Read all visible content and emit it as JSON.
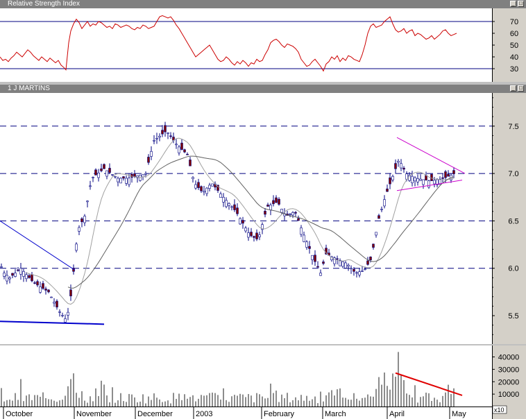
{
  "rsi_panel": {
    "title": "Relative Strength Index",
    "yticks": [
      30,
      40,
      50,
      60,
      70
    ],
    "ylim": [
      20,
      80
    ],
    "reference_lines": [
      30,
      70
    ]
  },
  "price_panel": {
    "title": "1 J MARTINS",
    "yticks": [
      "5.5",
      "6.0",
      "6.5",
      "7.0",
      "7.5"
    ],
    "ylim": [
      5.2,
      7.85
    ],
    "dashed_levels": [
      7.5,
      7.0,
      6.5,
      6.0
    ]
  },
  "volume_panel": {
    "yticks": [
      "10000",
      "20000",
      "30000",
      "40000"
    ],
    "ylim": [
      0,
      47000
    ],
    "scale_label": "x10"
  },
  "x_axis": {
    "months": [
      "October",
      "November",
      "December",
      "2003",
      "February",
      "March",
      "April",
      "May"
    ]
  },
  "colors": {
    "rsi_line": "#cc0000",
    "up_candle": "#ffffff",
    "down_candle": "#800000",
    "ma_fast": "#a0a0a0",
    "ma_slow": "#606060",
    "trendline": "#0000cc",
    "triangle": "#cc00cc",
    "volume_trend": "#e00000"
  },
  "chart_data": [
    {
      "type": "line",
      "title": "Relative Strength Index",
      "x": [
        0,
        4,
        8,
        12,
        16,
        20,
        24,
        28,
        32,
        36,
        40,
        44,
        48,
        52,
        56,
        60,
        64,
        68,
        72,
        76,
        80,
        84,
        88,
        92,
        95,
        99,
        102,
        106,
        110,
        114,
        118,
        122,
        126,
        130,
        134,
        138,
        142,
        146,
        150,
        154,
        158,
        162,
        166,
        170,
        174,
        178,
        182,
        186,
        190,
        194,
        198,
        202,
        206,
        210,
        214,
        218,
        222,
        226,
        230,
        234,
        238,
        242,
        246,
        250,
        254,
        258,
        262,
        266,
        270,
        274,
        278,
        282,
        286,
        290,
        294,
        298,
        302,
        306,
        310,
        314,
        318,
        322,
        326,
        330,
        334,
        338,
        342,
        346,
        350,
        354,
        358,
        362,
        366,
        370,
        374,
        378,
        382,
        386,
        390,
        394,
        398,
        402,
        406,
        410,
        414,
        418,
        422,
        426,
        430,
        434,
        438,
        442,
        446,
        450,
        454,
        458,
        462,
        466,
        470,
        474,
        478,
        482,
        486,
        490,
        494,
        498,
        502,
        506,
        510,
        514,
        518,
        522,
        526,
        530,
        534,
        538,
        542,
        546,
        550,
        554,
        558,
        562,
        566,
        570,
        574,
        578,
        582,
        586,
        590,
        594,
        598,
        602,
        606,
        610,
        614,
        618,
        622,
        626,
        630,
        634,
        638,
        642,
        646,
        650,
        654,
        658
      ],
      "values": [
        40,
        37,
        38,
        36,
        39,
        41,
        44,
        42,
        40,
        43,
        46,
        44,
        41,
        39,
        37,
        40,
        38,
        36,
        39,
        37,
        35,
        37,
        33,
        31,
        29,
        52,
        62,
        68,
        72,
        69,
        64,
        67,
        70,
        66,
        68,
        67,
        70,
        69,
        67,
        65,
        66,
        64,
        68,
        67,
        65,
        66,
        67,
        66,
        64,
        63,
        65,
        64,
        67,
        66,
        64,
        65,
        66,
        70,
        74,
        75,
        74,
        73,
        74,
        71,
        67,
        64,
        60,
        56,
        52,
        48,
        44,
        40,
        42,
        44,
        46,
        48,
        50,
        46,
        42,
        38,
        36,
        37,
        40,
        38,
        35,
        33,
        36,
        34,
        37,
        35,
        32,
        35,
        34,
        38,
        36,
        37,
        42,
        46,
        52,
        54,
        55,
        53,
        50,
        48,
        51,
        50,
        49,
        47,
        44,
        38,
        35,
        32,
        33,
        36,
        38,
        35,
        32,
        28,
        34,
        36,
        40,
        38,
        41,
        36,
        39,
        37,
        41,
        40,
        38,
        37,
        36,
        42,
        50,
        60,
        66,
        68,
        65,
        66,
        67,
        70,
        72,
        74,
        68,
        63,
        61,
        62,
        64,
        60,
        62,
        63,
        58,
        60,
        59,
        57,
        55,
        56,
        58,
        55,
        57,
        59,
        62,
        63,
        60,
        58,
        59,
        60
      ],
      "ylim": [
        20,
        80
      ]
    },
    {
      "type": "candlestick",
      "title": "1 J MARTINS",
      "ylim": [
        5.2,
        7.85
      ],
      "months": [
        "October",
        "November",
        "December",
        "2003",
        "February",
        "March",
        "April",
        "May"
      ]
    },
    {
      "type": "bar",
      "ylim": [
        0,
        47000
      ]
    }
  ]
}
